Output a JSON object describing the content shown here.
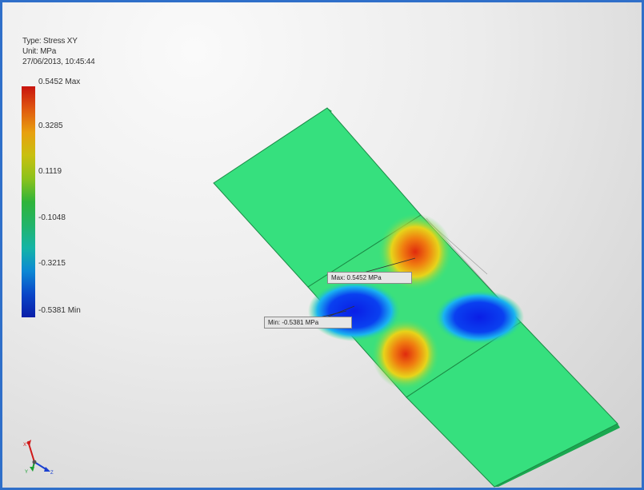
{
  "result": {
    "type_line": "Type: Stress XY",
    "unit_line": "Unit: MPa",
    "timestamp": "27/06/2013, 10:45:44"
  },
  "legend": {
    "ticks": [
      "0.5452 Max",
      "0.3285",
      "0.1119",
      "-0.1048",
      "-0.3215",
      "-0.5381 Min"
    ],
    "max": 0.5452,
    "min": -0.5381
  },
  "probes": {
    "max_label": "Max: 0.5452 MPa",
    "min_label": "Min: -0.5381 MPa"
  },
  "colors": {
    "border": "#2f6fc9",
    "plate": "#2ee27a",
    "high": "#e03010",
    "low": "#0a2ee0"
  },
  "triad": {
    "x_axis": "X",
    "y_axis": "Y",
    "z_axis": "Z"
  }
}
